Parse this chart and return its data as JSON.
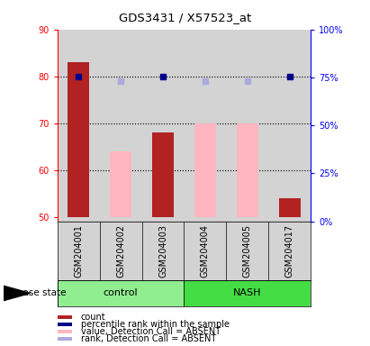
{
  "title": "GDS3431 / X57523_at",
  "samples": [
    "GSM204001",
    "GSM204002",
    "GSM204003",
    "GSM204004",
    "GSM204005",
    "GSM204017"
  ],
  "ylim_left": [
    49,
    90
  ],
  "ylim_right": [
    0,
    100
  ],
  "yticks_left": [
    50,
    60,
    70,
    80,
    90
  ],
  "yticks_right": [
    0,
    25,
    50,
    75,
    100
  ],
  "right_tick_labels": [
    "0%",
    "25%",
    "50%",
    "75%",
    "100%"
  ],
  "bar_count_values": [
    83,
    null,
    68,
    null,
    null,
    54
  ],
  "bar_value_absent_values": [
    null,
    64,
    null,
    70,
    70,
    null
  ],
  "dot_percentile_values": [
    80,
    null,
    80,
    null,
    null,
    80
  ],
  "dot_rank_absent_values": [
    null,
    79,
    null,
    79,
    79,
    null
  ],
  "bar_count_color": "#b22222",
  "bar_value_absent_color": "#ffb6c1",
  "dot_percentile_color": "#00008b",
  "dot_rank_absent_color": "#aaaadd",
  "bar_bottom": 50,
  "bar_width": 0.5,
  "control_color": "#90ee90",
  "nash_color": "#44dd44",
  "bg_color": "#d3d3d3",
  "legend_items": [
    {
      "label": "count",
      "color": "#b22222"
    },
    {
      "label": "percentile rank within the sample",
      "color": "#00008b"
    },
    {
      "label": "value, Detection Call = ABSENT",
      "color": "#ffb6c1"
    },
    {
      "label": "rank, Detection Call = ABSENT",
      "color": "#aaaadd"
    }
  ]
}
